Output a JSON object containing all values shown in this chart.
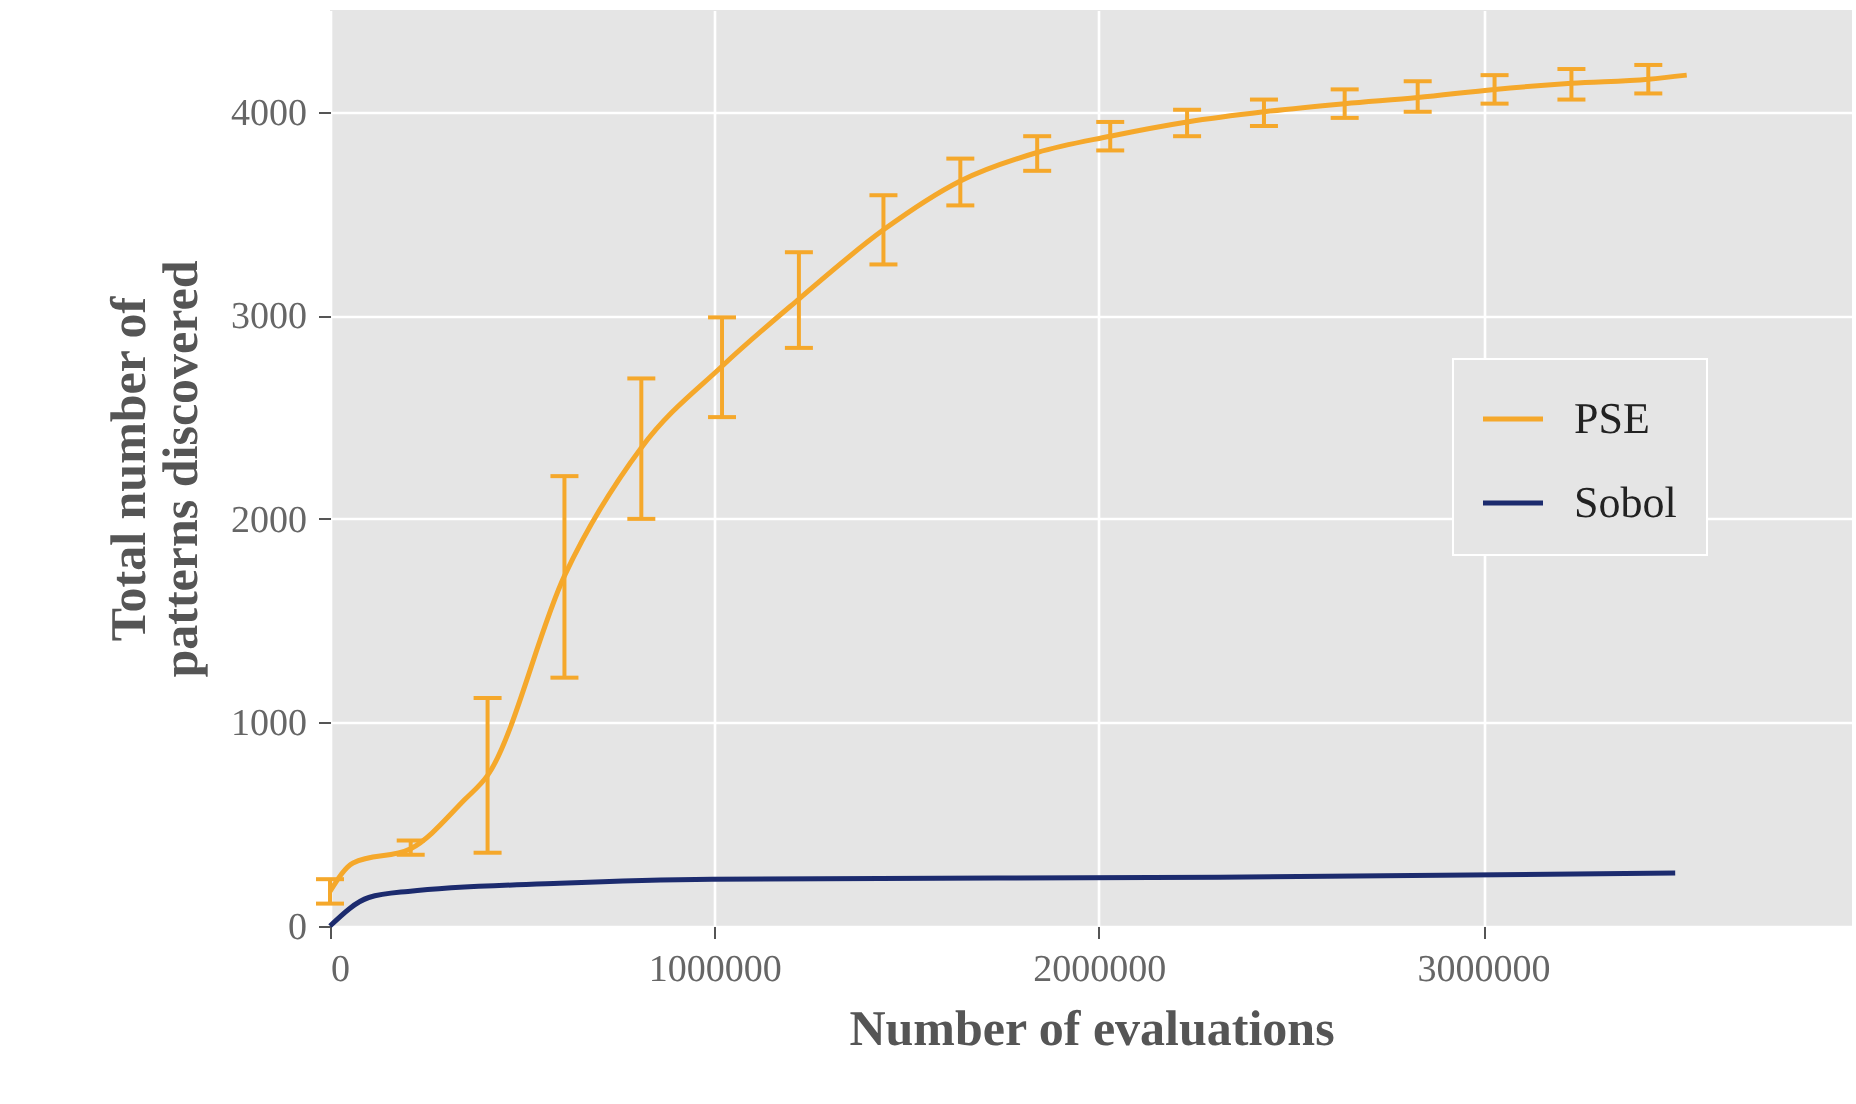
{
  "chart_data": {
    "type": "line",
    "xlabel": "Number of evaluations",
    "ylabel": "Total number of patterns discovered",
    "x": [
      0,
      60000,
      210000,
      350000,
      410000,
      610000,
      810000,
      1020000,
      1220000,
      1440000,
      1640000,
      1840000,
      2030000,
      2230000,
      2430000,
      2640000,
      2830000,
      3030000,
      3230000,
      3430000,
      3530000
    ],
    "series": [
      {
        "name": "PSE",
        "color": "#f5a82b",
        "values": [
          170,
          310,
          380,
          620,
          740,
          1720,
          2350,
          2750,
          3080,
          3420,
          3660,
          3800,
          3880,
          3950,
          4000,
          4040,
          4070,
          4110,
          4140,
          4160,
          4180
        ],
        "errors": [
          [
            110,
            230
          ],
          null,
          [
            350,
            420
          ],
          null,
          [
            360,
            1120
          ],
          [
            1220,
            2210
          ],
          [
            2000,
            2690
          ],
          [
            2500,
            2990
          ],
          [
            2840,
            3310
          ],
          [
            3250,
            3590
          ],
          [
            3540,
            3770
          ],
          [
            3710,
            3880
          ],
          [
            3810,
            3950
          ],
          [
            3880,
            4010
          ],
          [
            3930,
            4060
          ],
          [
            3970,
            4110
          ],
          [
            4000,
            4150
          ],
          [
            4040,
            4180
          ],
          [
            4060,
            4210
          ],
          [
            4090,
            4230
          ],
          null
        ]
      },
      {
        "name": "Sobol",
        "color": "#1c2b6e",
        "x": [
          0,
          101000,
          203000,
          598000,
          993000,
          2313000,
          3500000
        ],
        "values": [
          0,
          140,
          170,
          210,
          230,
          240,
          260
        ]
      }
    ],
    "xlim": [
      0,
      3960000
    ],
    "xticks": [
      0,
      1000000,
      2000000,
      3000000
    ],
    "ylim": [
      0,
      4500
    ],
    "yticks": [
      0,
      1000,
      2000,
      3000,
      4000
    ],
    "grid": true,
    "legend": "right"
  }
}
